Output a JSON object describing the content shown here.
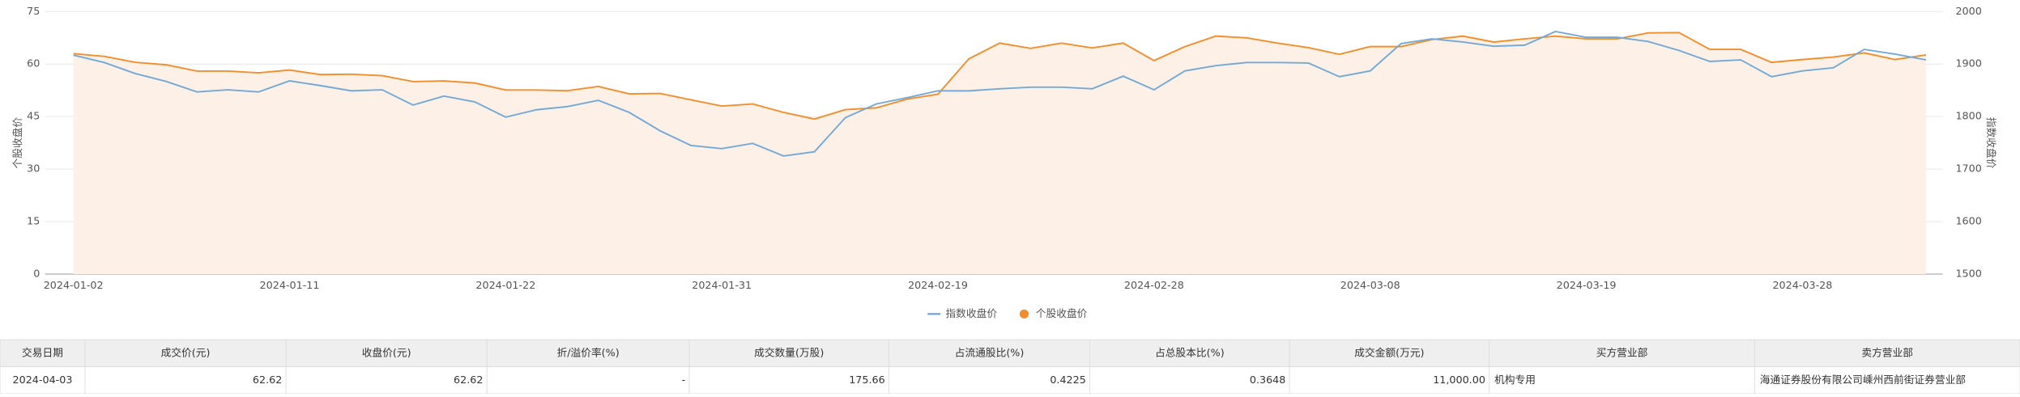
{
  "chart_data": {
    "type": "line",
    "categories": [
      "2024-01-02",
      null,
      null,
      null,
      null,
      null,
      null,
      "2024-01-11",
      null,
      null,
      null,
      null,
      null,
      null,
      "2024-01-22",
      null,
      null,
      null,
      null,
      null,
      null,
      "2024-01-31",
      null,
      null,
      null,
      null,
      null,
      null,
      "2024-02-19",
      null,
      null,
      null,
      null,
      null,
      null,
      "2024-02-28",
      null,
      null,
      null,
      null,
      null,
      null,
      "2024-03-08",
      null,
      null,
      null,
      null,
      null,
      null,
      "2024-03-19",
      null,
      null,
      null,
      null,
      null,
      null,
      "2024-03-28",
      null,
      null,
      null,
      null
    ],
    "series": [
      {
        "name": "指数收盘价",
        "color": "#73a9d8",
        "axis": "y2",
        "values": [
          1917,
          1903,
          1882,
          1867,
          1847,
          1851,
          1847,
          1868,
          1859,
          1849,
          1851,
          1822,
          1839,
          1828,
          1799,
          1813,
          1819,
          1831,
          1808,
          1773,
          1745,
          1739,
          1749,
          1725,
          1733,
          1798,
          1824,
          1836,
          1849,
          1849,
          1853,
          1856,
          1856,
          1853,
          1877,
          1851,
          1887,
          1897,
          1903,
          1903,
          1902,
          1876,
          1887,
          1939,
          1948,
          1942,
          1934,
          1936,
          1962,
          1951,
          1951,
          1943,
          1926,
          1905,
          1908,
          1876,
          1887,
          1893,
          1928,
          1919,
          1908
        ]
      },
      {
        "name": "个股收盘价",
        "color": "#f28e2b",
        "fill": "#fdf1e7",
        "values": [
          63,
          62.2,
          60.5,
          59.8,
          58,
          58,
          57.5,
          58.3,
          57,
          57.1,
          56.7,
          55,
          55.2,
          54.6,
          52.6,
          52.6,
          52.4,
          53.6,
          51.5,
          51.6,
          49.8,
          48,
          48.6,
          46.2,
          44.3,
          47,
          47.5,
          50,
          51.4,
          61.5,
          66,
          64.5,
          66,
          64.6,
          66,
          61,
          65,
          68,
          67.5,
          66,
          64.7,
          62.8,
          65,
          65,
          67,
          68,
          66.3,
          67.2,
          68,
          67.2,
          67.2,
          68.9,
          69,
          64.2,
          64.2,
          60.5,
          61.3,
          62,
          63.2,
          61.3,
          62.62
        ]
      }
    ],
    "ylabel": "个股收盘价",
    "y2label": "指数收盘价",
    "ylim": [
      0,
      75
    ],
    "yticks": [
      0,
      15,
      30,
      45,
      60,
      75
    ],
    "y2lim": [
      1500,
      2000
    ],
    "y2ticks": [
      1500,
      1600,
      1700,
      1800,
      1900,
      2000
    ],
    "grid": true,
    "legend": "bottom"
  },
  "table": {
    "header": [
      "交易日期",
      "成交价(元)",
      "收盘价(元)",
      "折/溢价率(%)",
      "成交数量(万股)",
      "占流通股比(%)",
      "占总股本比(%)",
      "成交金额(万元)",
      "买方营业部",
      "卖方营业部"
    ],
    "rows": [
      [
        "2024-04-03",
        "62.62",
        "62.62",
        "-",
        "175.66",
        "0.4225",
        "0.3648",
        "11,000.00",
        "机构专用",
        "海通证券股份有限公司嵊州西前街证券营业部"
      ]
    ]
  }
}
